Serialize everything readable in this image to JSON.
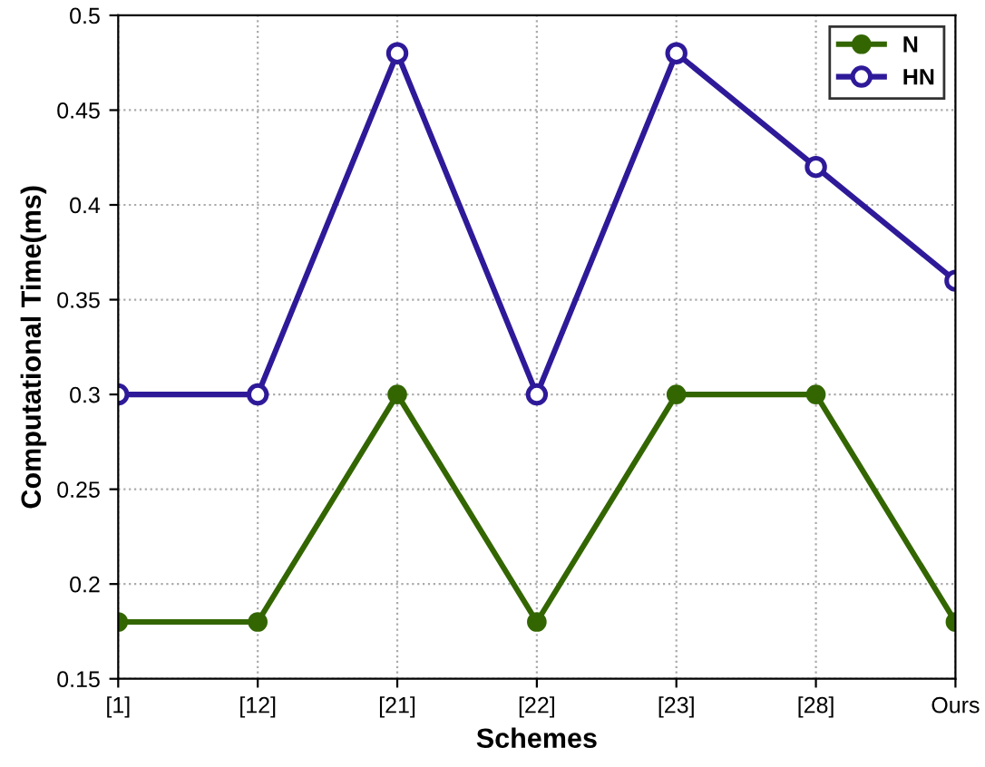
{
  "chart_data": {
    "type": "line",
    "xlabel": "Schemes",
    "ylabel": "Computational Time(ms)",
    "categories": [
      "[1]",
      "[12]",
      "[21]",
      "[22]",
      "[23]",
      "[28]",
      "Ours"
    ],
    "series": [
      {
        "name": "N",
        "color": "#336600",
        "values": [
          0.18,
          0.18,
          0.3,
          0.18,
          0.3,
          0.3,
          0.18
        ]
      },
      {
        "name": "HN",
        "color": "#2e1a99",
        "values": [
          0.3,
          0.3,
          0.48,
          0.3,
          0.48,
          0.42,
          0.36
        ]
      }
    ],
    "ylim": [
      0.15,
      0.5
    ],
    "yticks": [
      0.15,
      0.2,
      0.25,
      0.3,
      0.35,
      0.4,
      0.45,
      0.5
    ],
    "grid": true,
    "legend": "top right",
    "marker": "circle",
    "line_style": "solid"
  }
}
